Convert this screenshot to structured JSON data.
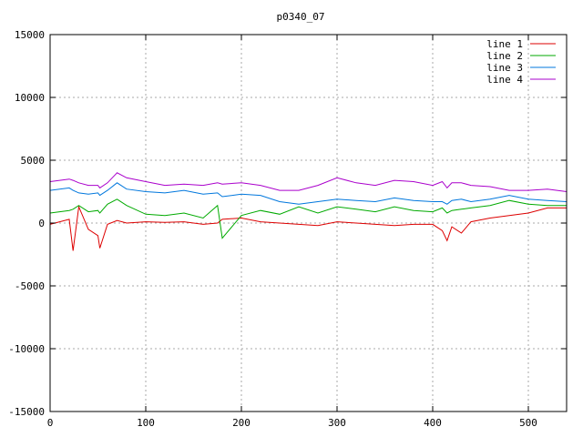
{
  "chart_data": {
    "type": "line",
    "title": "p0340_07",
    "xlabel": "",
    "ylabel": "",
    "xlim": [
      0,
      540
    ],
    "ylim": [
      -15000,
      15000
    ],
    "xticks": [
      "0",
      "100",
      "200",
      "300",
      "400",
      "500"
    ],
    "xtick_values": [
      0,
      100,
      200,
      300,
      400,
      500
    ],
    "yticks": [
      "-15000",
      "-10000",
      "-5000",
      "0",
      "5000",
      "10000",
      "15000"
    ],
    "ytick_values": [
      -15000,
      -10000,
      -5000,
      0,
      5000,
      10000,
      15000
    ],
    "grid": true,
    "legend_position": "top-right",
    "x": [
      0,
      20,
      24,
      30,
      40,
      50,
      52,
      60,
      70,
      80,
      100,
      120,
      140,
      160,
      175,
      180,
      200,
      220,
      240,
      260,
      280,
      300,
      320,
      340,
      360,
      380,
      400,
      410,
      415,
      420,
      430,
      440,
      460,
      480,
      500,
      520,
      540
    ],
    "series": [
      {
        "name": "line 1",
        "color": "#dd0000",
        "values": [
          -100,
          300,
          -2200,
          1300,
          -500,
          -1000,
          -2000,
          -100,
          200,
          0,
          100,
          50,
          100,
          -100,
          0,
          300,
          400,
          100,
          0,
          -100,
          -200,
          100,
          0,
          -100,
          -200,
          -100,
          -100,
          -600,
          -1400,
          -300,
          -800,
          100,
          400,
          600,
          800,
          1200,
          1200
        ]
      },
      {
        "name": "line 2",
        "color": "#00aa00",
        "values": [
          800,
          1000,
          1100,
          1400,
          900,
          1000,
          800,
          1500,
          1900,
          1400,
          700,
          600,
          800,
          400,
          1400,
          -1200,
          600,
          1000,
          700,
          1300,
          800,
          1300,
          1100,
          900,
          1300,
          1000,
          900,
          1200,
          800,
          1000,
          1100,
          1200,
          1400,
          1800,
          1500,
          1400,
          1400
        ]
      },
      {
        "name": "line 3",
        "color": "#0077dd",
        "values": [
          2600,
          2800,
          2600,
          2400,
          2300,
          2400,
          2200,
          2600,
          3200,
          2700,
          2500,
          2400,
          2600,
          2300,
          2400,
          2100,
          2300,
          2200,
          1700,
          1500,
          1700,
          1900,
          1800,
          1700,
          2000,
          1800,
          1700,
          1700,
          1500,
          1800,
          1900,
          1700,
          1900,
          2200,
          1900,
          1800,
          1700
        ]
      },
      {
        "name": "line 4",
        "color": "#aa00cc",
        "values": [
          3300,
          3500,
          3400,
          3200,
          3000,
          3000,
          2800,
          3200,
          4000,
          3600,
          3300,
          3000,
          3100,
          3000,
          3200,
          3100,
          3200,
          3000,
          2600,
          2600,
          3000,
          3600,
          3200,
          3000,
          3400,
          3300,
          3000,
          3300,
          2800,
          3200,
          3200,
          3000,
          2900,
          2600,
          2600,
          2700,
          2500
        ]
      }
    ]
  }
}
